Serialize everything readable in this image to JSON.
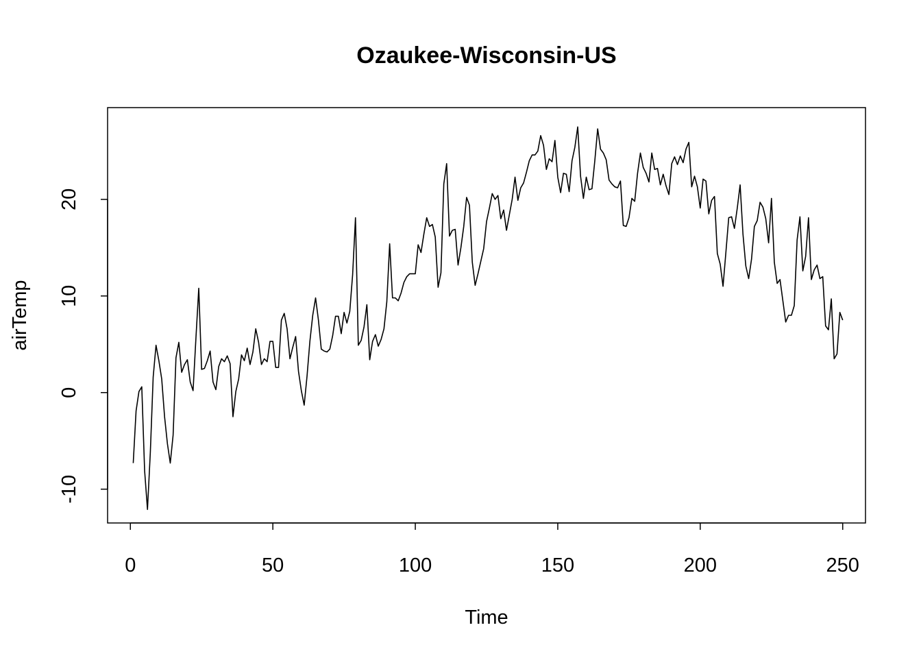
{
  "chart_data": {
    "type": "line",
    "title": "Ozaukee-Wisconsin-US",
    "xlabel": "Time",
    "ylabel": "airTemp",
    "xlim": [
      -8,
      258
    ],
    "ylim": [
      -13.5,
      29.5
    ],
    "x_ticks": [
      0,
      50,
      100,
      150,
      200,
      250
    ],
    "x_tick_labels": [
      "0",
      "50",
      "100",
      "150",
      "200",
      "250"
    ],
    "y_ticks": [
      -10,
      0,
      10,
      20
    ],
    "y_tick_labels": [
      "-10",
      "0",
      "10",
      "20"
    ],
    "grid": false,
    "legend": "none",
    "line_color": "#000000",
    "series": [
      {
        "x_start": 1,
        "values": [
          -7.3,
          -1.9,
          0.1,
          0.6,
          -8.1,
          -12.1,
          -6.2,
          1.6,
          4.9,
          3.3,
          1.4,
          -2.5,
          -5.3,
          -7.3,
          -4.4,
          3.6,
          5.2,
          2.1,
          2.9,
          3.4,
          1.1,
          0.2,
          5.6,
          10.8,
          2.4,
          2.5,
          3.3,
          4.3,
          1.1,
          0.3,
          2.7,
          3.5,
          3.2,
          3.8,
          3,
          -2.5,
          0.1,
          1.4,
          3.9,
          3.3,
          4.6,
          2.9,
          4.2,
          6.6,
          5.2,
          2.9,
          3.5,
          3.2,
          5.3,
          5.3,
          2.6,
          2.6,
          7.5,
          8.2,
          6.6,
          3.5,
          4.7,
          5.8,
          2.2,
          0.2,
          -1.3,
          1.7,
          5.3,
          8,
          9.8,
          7.5,
          4.5,
          4.3,
          4.2,
          4.5,
          5.9,
          7.9,
          7.9,
          6.1,
          8.3,
          7.2,
          8.4,
          12.2,
          18.1,
          4.9,
          5.4,
          6.8,
          9.1,
          3.4,
          5.3,
          6,
          4.8,
          5.5,
          6.6,
          9.4,
          15.4,
          9.8,
          9.8,
          9.5,
          10.3,
          11.4,
          12,
          12.3,
          12.3,
          12.3,
          15.3,
          14.5,
          16.4,
          18.1,
          17.2,
          17.4,
          16.1,
          10.9,
          12.4,
          21.6,
          23.7,
          16.2,
          16.8,
          16.9,
          13.2,
          15,
          17.2,
          20.2,
          19.4,
          13.5,
          11.1,
          12.3,
          13.6,
          14.9,
          17.7,
          19.1,
          20.6,
          20,
          20.4,
          18,
          18.9,
          16.8,
          18.4,
          20,
          22.3,
          19.9,
          21.2,
          21.7,
          22.8,
          24,
          24.6,
          24.6,
          25,
          26.6,
          25.6,
          23.1,
          24.2,
          23.9,
          26.1,
          22.3,
          20.7,
          22.7,
          22.6,
          20.8,
          24,
          25.4,
          27.5,
          22.4,
          20.1,
          22.3,
          21,
          21.1,
          24,
          27.3,
          25.2,
          24.8,
          24.1,
          22,
          21.6,
          21.3,
          21.2,
          21.9,
          17.3,
          17.2,
          18.1,
          20.1,
          19.8,
          22.7,
          24.8,
          23.3,
          22.7,
          21.8,
          24.8,
          23.1,
          23.2,
          21.5,
          22.6,
          21.4,
          20.5,
          23.7,
          24.4,
          23.6,
          24.5,
          23.8,
          25.2,
          25.9,
          21.3,
          22.4,
          21.3,
          19.1,
          22.1,
          21.9,
          18.5,
          19.9,
          20.3,
          14.4,
          13.3,
          11,
          14.5,
          18.1,
          18.2,
          17,
          19.1,
          21.5,
          16.4,
          13.1,
          11.8,
          13.8,
          17.2,
          17.8,
          19.7,
          19.2,
          18,
          15.5,
          20.1,
          13.5,
          11.3,
          11.7,
          9.5,
          7.3,
          8,
          8,
          9,
          15.8,
          18.2,
          12.6,
          14.1,
          18.1,
          11.7,
          12.7,
          13.2,
          11.8,
          12,
          6.9,
          6.5,
          9.7,
          3.5,
          4,
          8.3,
          7.5
        ]
      }
    ]
  }
}
